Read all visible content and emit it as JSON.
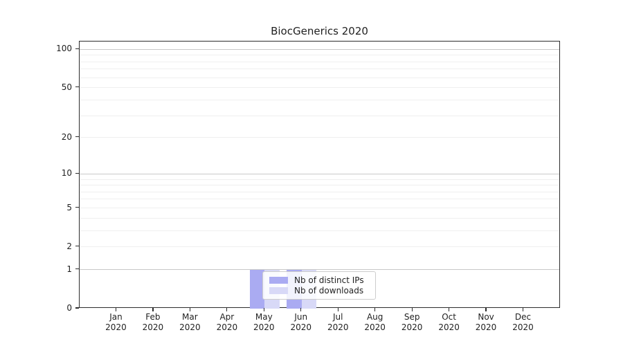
{
  "chart_data": {
    "type": "bar",
    "title": "BiocGenerics 2020",
    "x_months": [
      "Jan",
      "Feb",
      "Mar",
      "Apr",
      "May",
      "Jun",
      "Jul",
      "Aug",
      "Sep",
      "Oct",
      "Nov",
      "Dec"
    ],
    "x_year": "2020",
    "series": [
      {
        "name": "Nb of distinct IPs",
        "color": "#aaabf2",
        "values": [
          0,
          0,
          0,
          0,
          1,
          1,
          0,
          0,
          0,
          0,
          0,
          0
        ]
      },
      {
        "name": "Nb of downloads",
        "color": "#d8d9f7",
        "values": [
          0,
          0,
          0,
          0,
          1,
          1,
          0,
          0,
          0,
          0,
          0,
          0
        ]
      }
    ],
    "yscale": "log1p",
    "ylim": [
      0,
      115
    ],
    "ytick_labels": [
      100,
      50,
      20,
      10,
      5,
      2,
      1,
      0
    ],
    "major_gridlines": [
      1,
      10,
      100
    ],
    "minor_gridlines": [
      2,
      3,
      4,
      5,
      6,
      7,
      8,
      9,
      20,
      30,
      40,
      50,
      60,
      70,
      80,
      90
    ],
    "grid": true,
    "legend_position": "lower center inside plot"
  },
  "colors": {
    "spine": "#2b2b2b",
    "text": "#1f1f1f",
    "grid_major": "#c8c8c8",
    "grid_minor": "#efefef",
    "legend_border": "#cccccc",
    "background": "#ffffff"
  }
}
